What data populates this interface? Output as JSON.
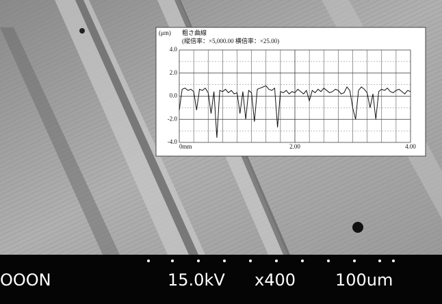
{
  "chart_data": {
    "type": "line",
    "y_unit": "(μm)",
    "title": "粗さ曲線",
    "subtitle": "(縦倍率：×5,000.00 横倍率：×25.00)",
    "x": [
      0.0,
      0.05,
      0.1,
      0.15,
      0.2,
      0.25,
      0.3,
      0.35,
      0.4,
      0.45,
      0.5,
      0.55,
      0.6,
      0.65,
      0.7,
      0.75,
      0.8,
      0.85,
      0.9,
      0.95,
      1.0,
      1.05,
      1.1,
      1.15,
      1.2,
      1.25,
      1.3,
      1.35,
      1.4,
      1.45,
      1.5,
      1.55,
      1.6,
      1.65,
      1.7,
      1.75,
      1.8,
      1.85,
      1.9,
      1.95,
      2.0,
      2.05,
      2.1,
      2.15,
      2.2,
      2.25,
      2.3,
      2.35,
      2.4,
      2.45,
      2.5,
      2.55,
      2.6,
      2.65,
      2.7,
      2.75,
      2.8,
      2.85,
      2.9,
      2.95,
      3.0,
      3.05,
      3.1,
      3.15,
      3.2,
      3.25,
      3.3,
      3.35,
      3.4,
      3.45,
      3.5,
      3.55,
      3.6,
      3.65,
      3.7,
      3.75,
      3.8,
      3.85,
      3.9,
      3.95,
      4.0
    ],
    "values": [
      -1.2,
      0.6,
      0.7,
      0.5,
      0.6,
      0.4,
      -1.2,
      0.6,
      0.5,
      0.7,
      0.3,
      -1.5,
      0.4,
      -3.6,
      0.5,
      0.4,
      0.6,
      0.3,
      0.5,
      0.2,
      0.3,
      -1.5,
      0.4,
      -2.0,
      0.5,
      0.3,
      -2.2,
      0.6,
      0.7,
      0.8,
      0.9,
      0.6,
      0.5,
      0.7,
      -2.7,
      0.4,
      0.3,
      0.5,
      0.2,
      0.4,
      0.3,
      0.6,
      0.4,
      0.2,
      0.5,
      -0.4,
      0.5,
      0.3,
      0.6,
      0.4,
      0.7,
      0.5,
      0.3,
      0.4,
      0.6,
      0.5,
      0.2,
      0.3,
      0.8,
      0.5,
      -1.0,
      -2.0,
      0.5,
      0.8,
      0.6,
      0.3,
      -1.0,
      0.2,
      -2.0,
      0.4,
      0.6,
      0.5,
      0.7,
      0.4,
      0.3,
      0.5,
      0.6,
      0.4,
      0.2,
      0.5,
      0.4
    ],
    "color": "#111111",
    "xlim": [
      0,
      4
    ],
    "ylim": [
      -4,
      4
    ],
    "xticks": [
      {
        "value": 0,
        "label": "0mm"
      },
      {
        "value": 2,
        "label": "2.00"
      },
      {
        "value": 4,
        "label": "4.00"
      }
    ],
    "yticks": [
      {
        "value": 4,
        "label": "4.0"
      },
      {
        "value": 2,
        "label": "2.0"
      },
      {
        "value": 0,
        "label": "0.0"
      },
      {
        "value": -2,
        "label": "-2.0"
      },
      {
        "value": -4,
        "label": "-4.0"
      }
    ],
    "xminor": [
      0.25,
      0.5,
      0.75,
      1,
      1.25,
      1.5,
      1.75,
      2.25,
      2.5,
      2.75,
      3,
      3.25,
      3.5,
      3.75
    ],
    "yminor": [
      -3,
      -1,
      1,
      3
    ],
    "grid": true
  },
  "sem_bar": {
    "left": "OOON",
    "voltage": "15.0kV",
    "magnification": "x400",
    "scale": "100um"
  }
}
